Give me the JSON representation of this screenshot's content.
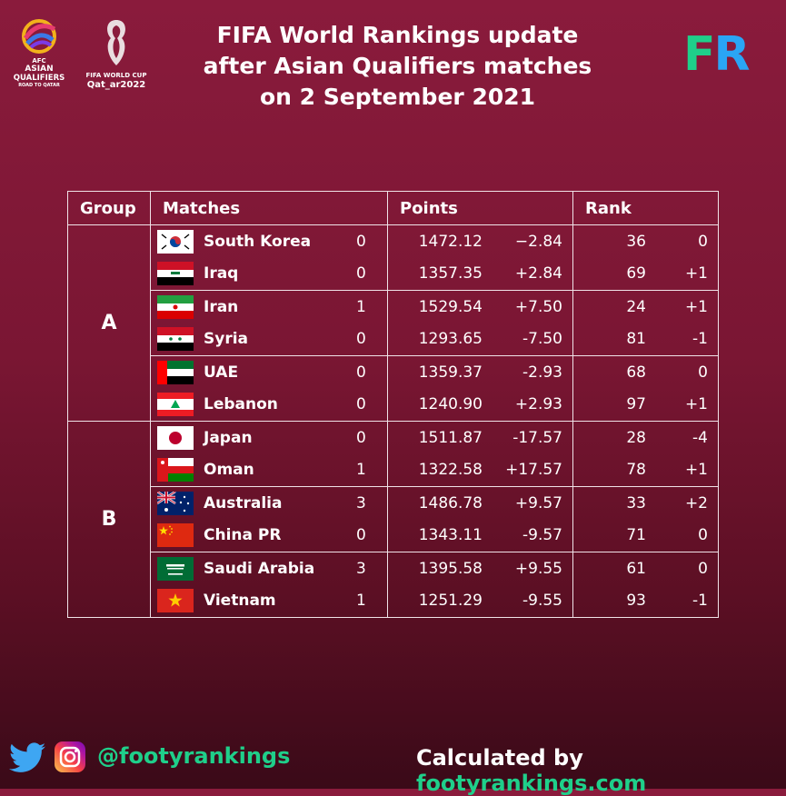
{
  "title_lines": [
    "FIFA World Rankings update",
    "after Asian Qualifiers matches",
    "on 2 September 2021"
  ],
  "logos": {
    "afc_line1": "AFC",
    "afc_line2": "ASIAN",
    "afc_line3": "QUALIFIERS",
    "afc_line4": "ROAD TO QATAR",
    "wc_line1": "FIFA WORLD CUP",
    "wc_line2": "Qat_ar2022",
    "fr_f": "F",
    "fr_r": "R"
  },
  "headers": {
    "group": "Group",
    "matches": "Matches",
    "points": "Points",
    "rank": "Rank"
  },
  "groups": [
    {
      "name": "A",
      "rows": [
        {
          "country": "South Korea",
          "flag": "south-korea",
          "goals": "0",
          "points": "1472.12",
          "change": "−2.84",
          "rank": "36",
          "rank_change": "0"
        },
        {
          "country": "Iraq",
          "flag": "iraq",
          "goals": "0",
          "points": "1357.35",
          "change": "+2.84",
          "rank": "69",
          "rank_change": "+1"
        },
        {
          "country": "Iran",
          "flag": "iran",
          "goals": "1",
          "points": "1529.54",
          "change": "+7.50",
          "rank": "24",
          "rank_change": "+1"
        },
        {
          "country": "Syria",
          "flag": "syria",
          "goals": "0",
          "points": "1293.65",
          "change": "-7.50",
          "rank": "81",
          "rank_change": "-1"
        },
        {
          "country": "UAE",
          "flag": "uae",
          "goals": "0",
          "points": "1359.37",
          "change": "-2.93",
          "rank": "68",
          "rank_change": "0"
        },
        {
          "country": "Lebanon",
          "flag": "lebanon",
          "goals": "0",
          "points": "1240.90",
          "change": "+2.93",
          "rank": "97",
          "rank_change": "+1"
        }
      ]
    },
    {
      "name": "B",
      "rows": [
        {
          "country": "Japan",
          "flag": "japan",
          "goals": "0",
          "points": "1511.87",
          "change": "-17.57",
          "rank": "28",
          "rank_change": "-4"
        },
        {
          "country": "Oman",
          "flag": "oman",
          "goals": "1",
          "points": "1322.58",
          "change": "+17.57",
          "rank": "78",
          "rank_change": "+1"
        },
        {
          "country": "Australia",
          "flag": "australia",
          "goals": "3",
          "points": "1486.78",
          "change": "+9.57",
          "rank": "33",
          "rank_change": "+2"
        },
        {
          "country": "China PR",
          "flag": "china",
          "goals": "0",
          "points": "1343.11",
          "change": "-9.57",
          "rank": "71",
          "rank_change": "0"
        },
        {
          "country": "Saudi Arabia",
          "flag": "saudi-arabia",
          "goals": "3",
          "points": "1395.58",
          "change": "+9.55",
          "rank": "61",
          "rank_change": "0"
        },
        {
          "country": "Vietnam",
          "flag": "vietnam",
          "goals": "1",
          "points": "1251.29",
          "change": "-9.55",
          "rank": "93",
          "rank_change": "-1"
        }
      ]
    }
  ],
  "footer": {
    "handle": "@footyrankings",
    "calc_prefix": "Calculated by ",
    "calc_site": "footyrankings.com",
    "twitter_icon": "twitter-bird-icon",
    "instagram_icon": "instagram-icon"
  },
  "colors": {
    "accent_green": "#1fcf8a",
    "accent_blue": "#2aa5f5",
    "background": "#7a1633"
  }
}
